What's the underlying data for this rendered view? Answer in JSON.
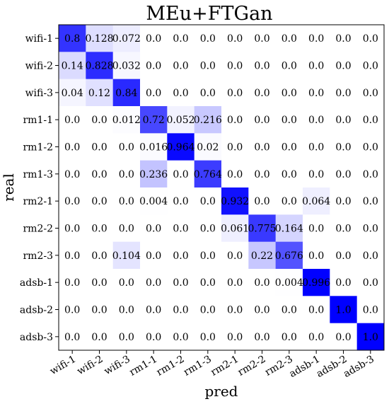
{
  "chart_data": {
    "type": "heatmap",
    "title": "MEu+FTGan",
    "xlabel": "pred",
    "ylabel": "real",
    "x_categories": [
      "wifi-1",
      "wifi-2",
      "wifi-3",
      "rm1-1",
      "rm1-2",
      "rm1-3",
      "rm2-1",
      "rm2-2",
      "rm2-3",
      "adsb-1",
      "adsb-2",
      "adsb-3"
    ],
    "y_categories": [
      "wifi-1",
      "wifi-2",
      "wifi-3",
      "rm1-1",
      "rm1-2",
      "rm1-3",
      "rm2-1",
      "rm2-2",
      "rm2-3",
      "adsb-1",
      "adsb-2",
      "adsb-3"
    ],
    "value_range": [
      0,
      1
    ],
    "colormap": {
      "low": "#ffffff",
      "high": "#0000ff"
    },
    "values": [
      [
        0.8,
        0.128,
        0.072,
        0.0,
        0.0,
        0.0,
        0.0,
        0.0,
        0.0,
        0.0,
        0.0,
        0.0
      ],
      [
        0.14,
        0.828,
        0.032,
        0.0,
        0.0,
        0.0,
        0.0,
        0.0,
        0.0,
        0.0,
        0.0,
        0.0
      ],
      [
        0.04,
        0.12,
        0.84,
        0.0,
        0.0,
        0.0,
        0.0,
        0.0,
        0.0,
        0.0,
        0.0,
        0.0
      ],
      [
        0.0,
        0.0,
        0.012,
        0.72,
        0.052,
        0.216,
        0.0,
        0.0,
        0.0,
        0.0,
        0.0,
        0.0
      ],
      [
        0.0,
        0.0,
        0.0,
        0.016,
        0.964,
        0.02,
        0.0,
        0.0,
        0.0,
        0.0,
        0.0,
        0.0
      ],
      [
        0.0,
        0.0,
        0.0,
        0.236,
        0.0,
        0.764,
        0.0,
        0.0,
        0.0,
        0.0,
        0.0,
        0.0
      ],
      [
        0.0,
        0.0,
        0.0,
        0.004,
        0.0,
        0.0,
        0.932,
        0.0,
        0.0,
        0.064,
        0.0,
        0.0
      ],
      [
        0.0,
        0.0,
        0.0,
        0.0,
        0.0,
        0.0,
        0.061,
        0.775,
        0.164,
        0.0,
        0.0,
        0.0
      ],
      [
        0.0,
        0.0,
        0.104,
        0.0,
        0.0,
        0.0,
        0.0,
        0.22,
        0.676,
        0.0,
        0.0,
        0.0
      ],
      [
        0.0,
        0.0,
        0.0,
        0.0,
        0.0,
        0.0,
        0.0,
        0.0,
        0.004,
        0.996,
        0.0,
        0.0
      ],
      [
        0.0,
        0.0,
        0.0,
        0.0,
        0.0,
        0.0,
        0.0,
        0.0,
        0.0,
        0.0,
        1.0,
        0.0
      ],
      [
        0.0,
        0.0,
        0.0,
        0.0,
        0.0,
        0.0,
        0.0,
        0.0,
        0.0,
        0.0,
        0.0,
        1.0
      ]
    ],
    "value_labels": [
      [
        "0.8",
        "0.128",
        "0.072",
        "0.0",
        "0.0",
        "0.0",
        "0.0",
        "0.0",
        "0.0",
        "0.0",
        "0.0",
        "0.0"
      ],
      [
        "0.14",
        "0.828",
        "0.032",
        "0.0",
        "0.0",
        "0.0",
        "0.0",
        "0.0",
        "0.0",
        "0.0",
        "0.0",
        "0.0"
      ],
      [
        "0.04",
        "0.12",
        "0.84",
        "0.0",
        "0.0",
        "0.0",
        "0.0",
        "0.0",
        "0.0",
        "0.0",
        "0.0",
        "0.0"
      ],
      [
        "0.0",
        "0.0",
        "0.012",
        "0.72",
        "0.052",
        "0.216",
        "0.0",
        "0.0",
        "0.0",
        "0.0",
        "0.0",
        "0.0"
      ],
      [
        "0.0",
        "0.0",
        "0.0",
        "0.016",
        "0.964",
        "0.02",
        "0.0",
        "0.0",
        "0.0",
        "0.0",
        "0.0",
        "0.0"
      ],
      [
        "0.0",
        "0.0",
        "0.0",
        "0.236",
        "0.0",
        "0.764",
        "0.0",
        "0.0",
        "0.0",
        "0.0",
        "0.0",
        "0.0"
      ],
      [
        "0.0",
        "0.0",
        "0.0",
        "0.004",
        "0.0",
        "0.0",
        "0.932",
        "0.0",
        "0.0",
        "0.064",
        "0.0",
        "0.0"
      ],
      [
        "0.0",
        "0.0",
        "0.0",
        "0.0",
        "0.0",
        "0.0",
        "0.061",
        "0.775",
        "0.164",
        "0.0",
        "0.0",
        "0.0"
      ],
      [
        "0.0",
        "0.0",
        "0.104",
        "0.0",
        "0.0",
        "0.0",
        "0.0",
        "0.22",
        "0.676",
        "0.0",
        "0.0",
        "0.0"
      ],
      [
        "0.0",
        "0.0",
        "0.0",
        "0.0",
        "0.0",
        "0.0",
        "0.0",
        "0.0",
        "0.004",
        "0.996",
        "0.0",
        "0.0"
      ],
      [
        "0.0",
        "0.0",
        "0.0",
        "0.0",
        "0.0",
        "0.0",
        "0.0",
        "0.0",
        "0.0",
        "0.0",
        "1.0",
        "0.0"
      ],
      [
        "0.0",
        "0.0",
        "0.0",
        "0.0",
        "0.0",
        "0.0",
        "0.0",
        "0.0",
        "0.0",
        "0.0",
        "0.0",
        "1.0"
      ]
    ]
  }
}
